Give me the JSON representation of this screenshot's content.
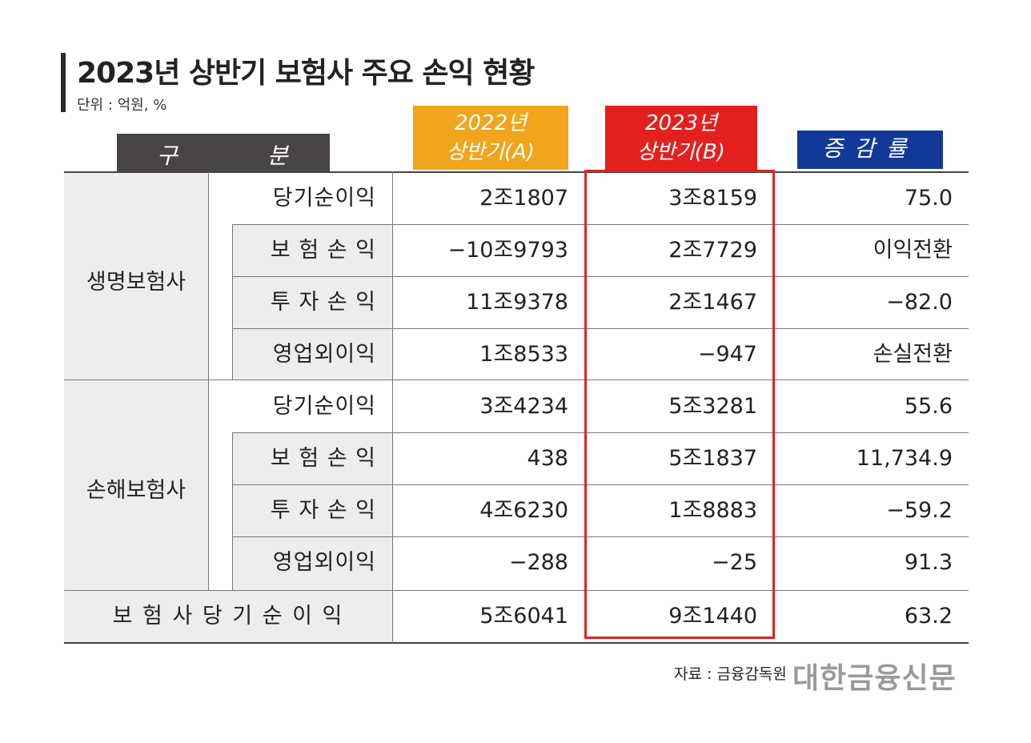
{
  "title": "2023년 상반기 보험사 주요 손익 현황",
  "unit": "단위 : 억원, %",
  "headers": {
    "gubun_1": "구",
    "gubun_2": "분",
    "col_2022_line1": "2022년",
    "col_2022_line2": "상반기(A)",
    "col_2023_line1": "2023년",
    "col_2023_line2": "상반기(B)",
    "col_rate": "증감률"
  },
  "groups": {
    "life": "생명보험사",
    "nonlife": "손해보험사"
  },
  "rows": [
    {
      "sub": "당기순이익",
      "a": "2조1807",
      "b": "3조8159",
      "rate": "75.0"
    },
    {
      "sub": "보 험 손 익",
      "a": "−10조9793",
      "b": "2조7729",
      "rate": "이익전환"
    },
    {
      "sub": "투 자 손 익",
      "a": "11조9378",
      "b": "2조1467",
      "rate": "−82.0"
    },
    {
      "sub": "영업외이익",
      "a": "1조8533",
      "b": "−947",
      "rate": "손실전환"
    },
    {
      "sub": "당기순이익",
      "a": "3조4234",
      "b": "5조3281",
      "rate": "55.6"
    },
    {
      "sub": "보 험 손 익",
      "a": "438",
      "b": "5조1837",
      "rate": "11,734.9"
    },
    {
      "sub": "투 자 손 익",
      "a": "4조6230",
      "b": "1조8883",
      "rate": "−59.2"
    },
    {
      "sub": "영업외이익",
      "a": "−288",
      "b": "−25",
      "rate": "91.3"
    }
  ],
  "total": {
    "label": "보 험 사 당 기 순 이 익",
    "a": "5조6041",
    "b": "9조1440",
    "rate": "63.2"
  },
  "source": "자료 : 금융감독원",
  "logo": "대한금융신문"
}
